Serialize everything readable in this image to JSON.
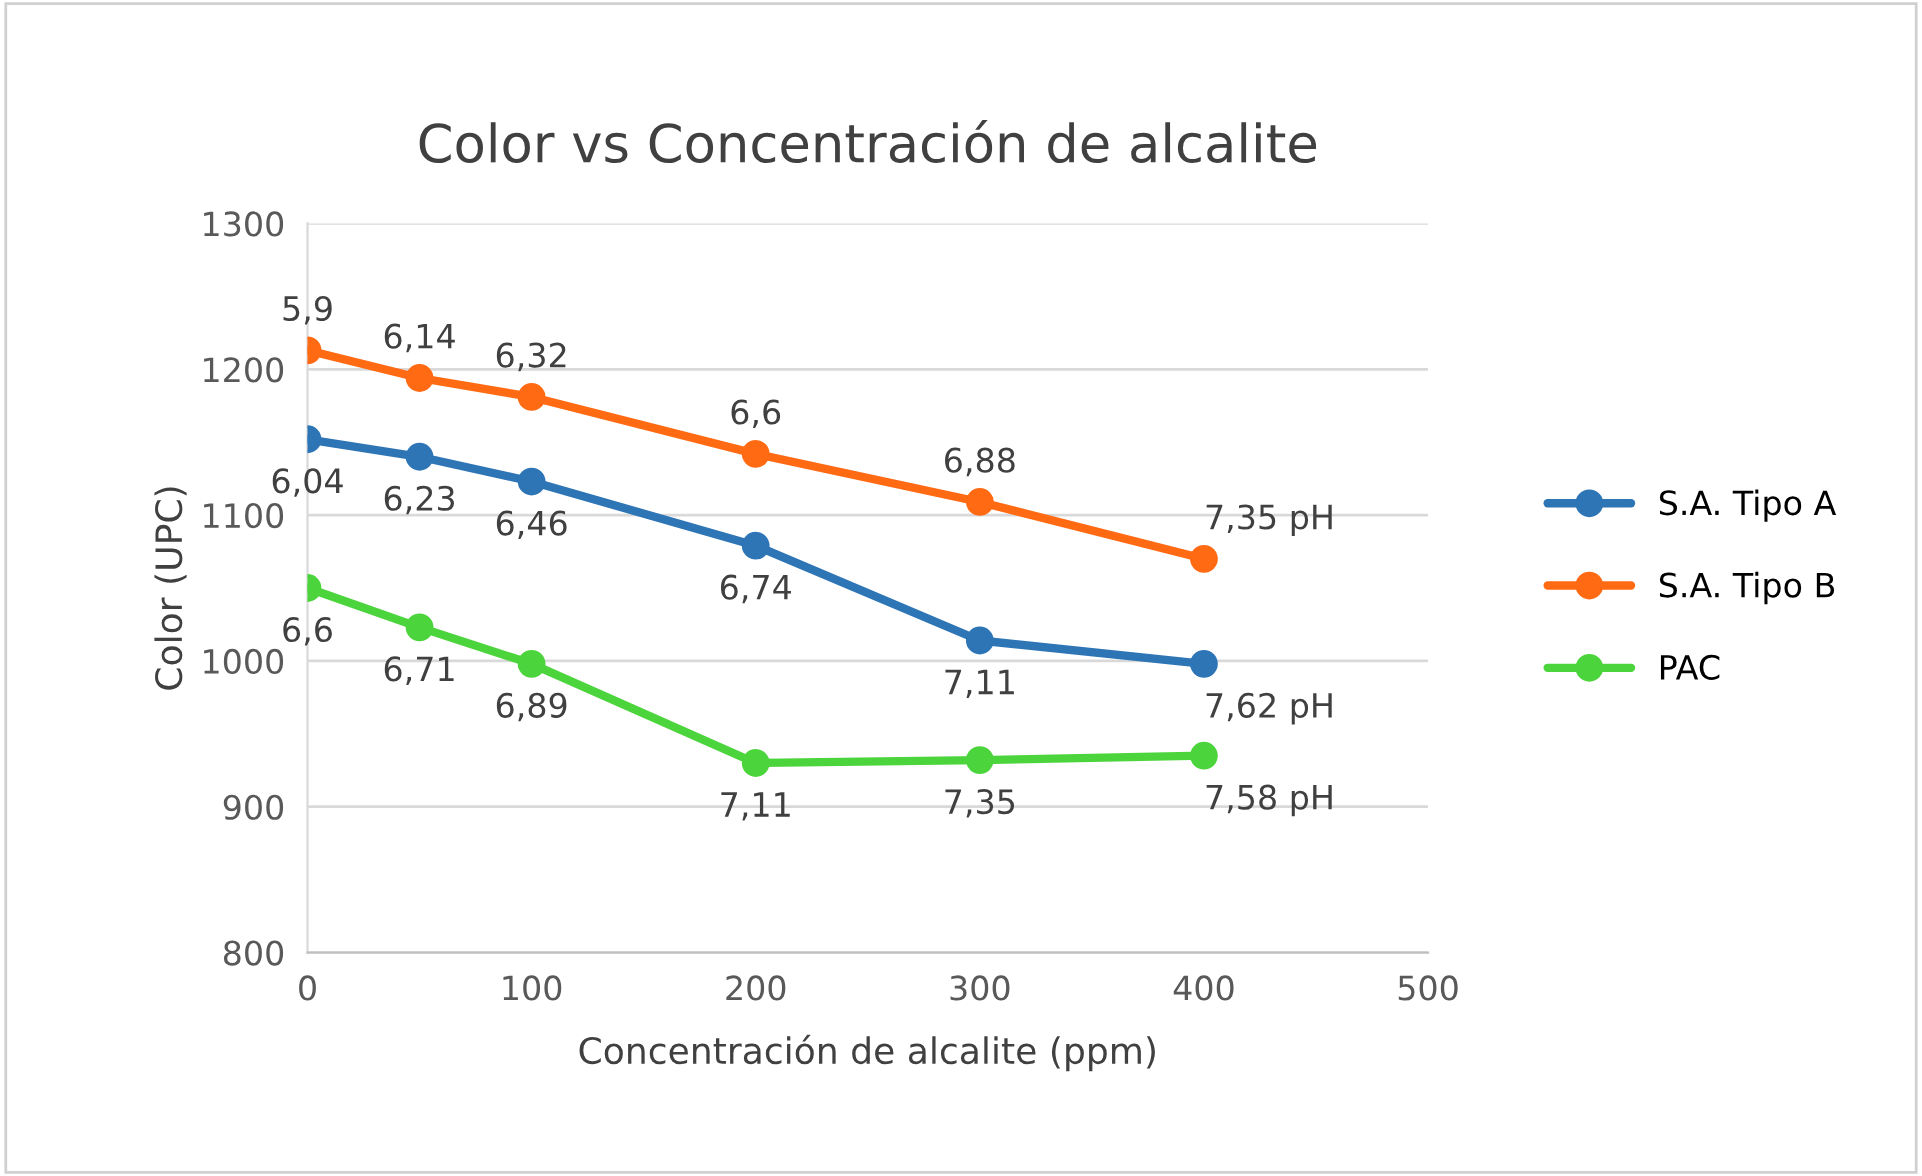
{
  "chart_data": {
    "type": "line",
    "title": "Color vs Concentración de alcalite",
    "xlabel": "Concentración de alcalite (ppm)",
    "ylabel": "Color (UPC)",
    "x": [
      0,
      50,
      100,
      200,
      300,
      400
    ],
    "series": [
      {
        "name": "S.A. Tipo A",
        "color": "#2e75b6",
        "values": [
          1152,
          1140,
          1123,
          1079,
          1014,
          998
        ]
      },
      {
        "name": "S.A. Tipo B",
        "color": "#ff6a13",
        "values": [
          1213,
          1194,
          1181,
          1142,
          1109,
          1070
        ]
      },
      {
        "name": "PAC",
        "color": "#4cd43c",
        "values": [
          1050,
          1023,
          998,
          930,
          932,
          935
        ]
      }
    ],
    "annotations": [
      {
        "text": "6,04",
        "x": 0,
        "y": 1152
      },
      {
        "text": "6,23",
        "x": 50,
        "y": 1140
      },
      {
        "text": "6,46",
        "x": 100,
        "y": 1123
      },
      {
        "text": "6,74",
        "x": 200,
        "y": 1079
      },
      {
        "text": "7,11",
        "x": 300,
        "y": 1014
      },
      {
        "text": "7,62 pH",
        "x": 400,
        "y": 998
      },
      {
        "text": "5,9",
        "x": 0,
        "y": 1213
      },
      {
        "text": "6,14",
        "x": 50,
        "y": 1194
      },
      {
        "text": "6,32",
        "x": 100,
        "y": 1181
      },
      {
        "text": "6,6",
        "x": 200,
        "y": 1142
      },
      {
        "text": "6,88",
        "x": 300,
        "y": 1109
      },
      {
        "text": "7,35 pH",
        "x": 400,
        "y": 1070
      },
      {
        "text": "6,6",
        "x": 0,
        "y": 1050
      },
      {
        "text": "6,71",
        "x": 50,
        "y": 1023
      },
      {
        "text": "6,89",
        "x": 100,
        "y": 998
      },
      {
        "text": "7,11",
        "x": 200,
        "y": 930
      },
      {
        "text": "7,35",
        "x": 300,
        "y": 932
      },
      {
        "text": "7,58 pH",
        "x": 400,
        "y": 935
      }
    ],
    "xlim": [
      0,
      500
    ],
    "xticks": [
      0,
      100,
      200,
      300,
      400,
      500
    ],
    "ylim": [
      800,
      1300
    ],
    "yticks": [
      800,
      900,
      1000,
      1100,
      1200,
      1300
    ],
    "grid": "y",
    "legend": "right",
    "marker": "circle",
    "line_style": "solid"
  }
}
